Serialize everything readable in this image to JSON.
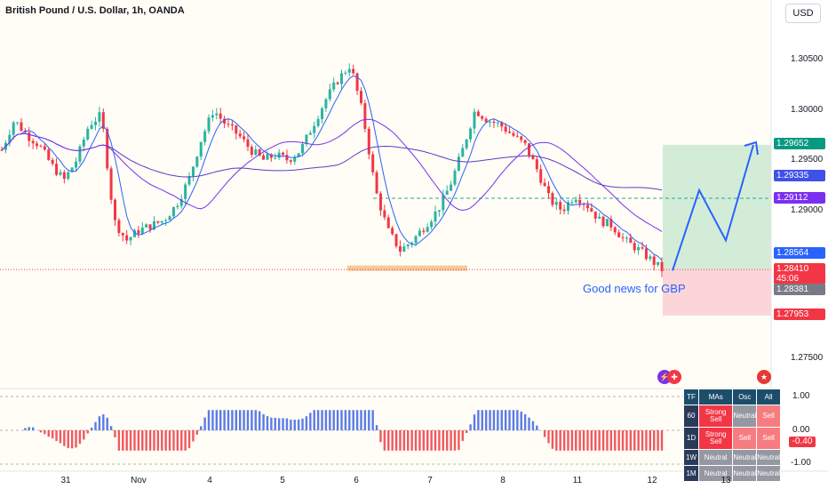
{
  "header": {
    "title": "British Pound / U.S. Dollar, 1h, OANDA",
    "currency_button": "USD"
  },
  "price_axis": {
    "labels": [
      "1.30500",
      "1.30000",
      "1.29500",
      "1.29000",
      "1.27500"
    ],
    "tags": [
      {
        "value": "1.29652",
        "color": "#089981"
      },
      {
        "value": "1.29335",
        "color": "#3f51e8"
      },
      {
        "value": "1.29112",
        "color": "#7b2ff0"
      },
      {
        "value": "1.28564",
        "color": "#2962ff"
      },
      {
        "value": "1.28410",
        "color": "#f23645"
      },
      {
        "value": "45:06",
        "color": "#f23645"
      },
      {
        "value": "1.28381",
        "color": "#787b86"
      },
      {
        "value": "1.27953",
        "color": "#f23645"
      }
    ]
  },
  "time_axis": {
    "labels": [
      "31",
      "Nov",
      "4",
      "5",
      "6",
      "7",
      "8",
      "11",
      "12",
      "13"
    ]
  },
  "annotation": "Good news for GBP",
  "colors": {
    "up": "#2bb3a1",
    "down": "#f23645",
    "ma_fast": "#2962ff",
    "ma_slow": "#5b3cc4",
    "target_zone": "#d3ecd8",
    "stop_zone": "#fbd5d8",
    "support": "#f5c99b",
    "prediction": "#2962ff"
  },
  "oscillator": {
    "labels": [
      "1.00",
      "0.00",
      "-1.00"
    ],
    "current": "-0.40"
  },
  "rating_table": {
    "headers": [
      "TF",
      "MAs",
      "Osc",
      "All"
    ],
    "rows": [
      {
        "tf": "60",
        "mas": "Strong Sell",
        "osc": "Neutral",
        "all": "Sell"
      },
      {
        "tf": "1D",
        "mas": "Strong Sell",
        "osc": "Sell",
        "all": "Sell"
      },
      {
        "tf": "1W",
        "mas": "Neutral",
        "osc": "Neutral",
        "all": "Neutral"
      },
      {
        "tf": "1M",
        "mas": "Neutral",
        "osc": "Neutral",
        "all": "Neutral"
      }
    ]
  },
  "chart_data": {
    "type": "candlestick",
    "title": "British Pound / U.S. Dollar, 1h, OANDA",
    "x_labels": [
      "31",
      "Nov",
      "4",
      "5",
      "6",
      "7",
      "8",
      "11",
      "12",
      "13"
    ],
    "ylim": [
      1.272,
      1.308
    ],
    "close_path": [
      1.296,
      1.299,
      1.2975,
      1.2965,
      1.2945,
      1.293,
      1.295,
      1.2985,
      1.2995,
      1.289,
      1.287,
      1.288,
      1.2885,
      1.289,
      1.2905,
      1.293,
      1.297,
      1.3,
      1.2985,
      1.2975,
      1.296,
      1.295,
      1.2955,
      1.295,
      1.296,
      1.2985,
      1.301,
      1.303,
      1.3045,
      1.2995,
      1.292,
      1.288,
      1.286,
      1.287,
      1.2885,
      1.29,
      1.2925,
      1.296,
      1.3,
      1.299,
      1.2985,
      1.2975,
      1.2965,
      1.294,
      1.291,
      1.29,
      1.2915,
      1.2905,
      1.289,
      1.2885,
      1.287,
      1.2862,
      1.2852,
      1.2841
    ],
    "target_zone": [
      1.2841,
      1.29652
    ],
    "stop_zone": [
      1.27953,
      1.2841
    ],
    "current_price": 1.2841,
    "prediction_path": [
      1.284,
      1.292,
      1.287,
      1.2965
    ]
  }
}
